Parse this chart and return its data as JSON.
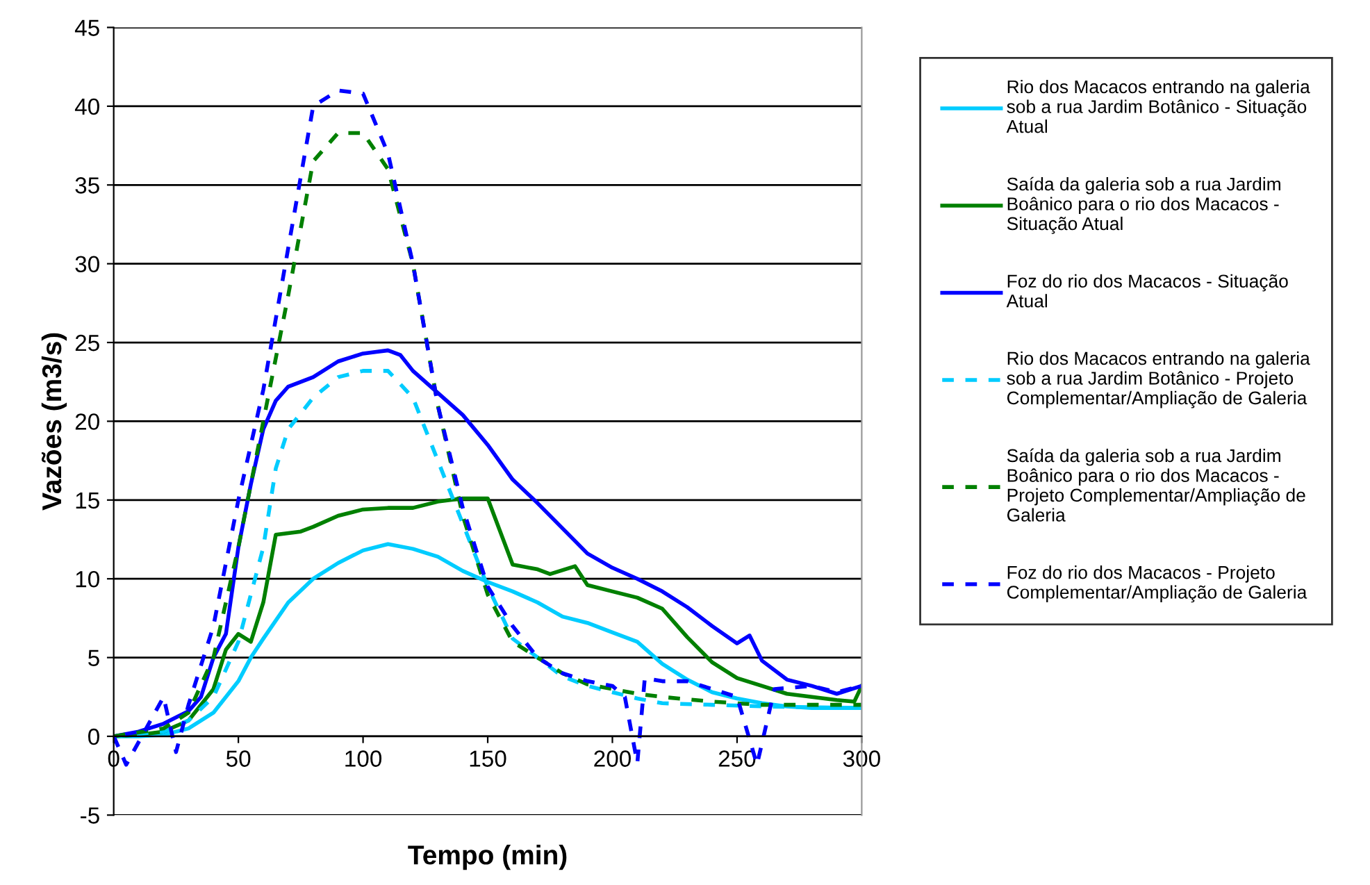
{
  "chart_data": {
    "type": "line",
    "xlabel": "Tempo (min)",
    "ylabel": "Vazões (m3/s)",
    "xlim": [
      0,
      300
    ],
    "ylim": [
      -5,
      45
    ],
    "xticks": [
      0,
      50,
      100,
      150,
      200,
      250,
      300
    ],
    "yticks": [
      -5,
      0,
      5,
      10,
      15,
      20,
      25,
      30,
      35,
      40,
      45
    ],
    "grid": "y",
    "legend": "right",
    "marker": "none",
    "series": [
      {
        "name": "Rio dos Macacos entrando na galeria sob a rua Jardim Botânico - Situação Atual",
        "color": "#00ccff",
        "line_style": "solid",
        "x": [
          0,
          10,
          20,
          30,
          40,
          50,
          55,
          60,
          70,
          80,
          90,
          100,
          110,
          120,
          130,
          140,
          150,
          160,
          170,
          180,
          190,
          200,
          210,
          220,
          230,
          240,
          250,
          260,
          270,
          280,
          290,
          300
        ],
        "values": [
          0,
          0,
          0.1,
          0.5,
          1.5,
          3.5,
          5,
          6.2,
          8.5,
          10,
          11,
          11.8,
          12.2,
          11.9,
          11.4,
          10.5,
          9.8,
          9.2,
          8.5,
          7.6,
          7.2,
          6.6,
          6.0,
          4.6,
          3.6,
          2.8,
          2.4,
          2.1,
          1.9,
          1.8,
          1.8,
          1.8
        ]
      },
      {
        "name": "Saída da galeria sob a rua Jardim Boânico para o rio dos Macacos - Situação Atual",
        "color": "#008000",
        "line_style": "solid",
        "x": [
          0,
          10,
          20,
          30,
          40,
          45,
          50,
          55,
          60,
          65,
          75,
          80,
          90,
          100,
          110,
          120,
          130,
          140,
          150,
          160,
          170,
          175,
          185,
          190,
          200,
          210,
          220,
          230,
          240,
          250,
          260,
          270,
          280,
          290,
          297,
          300
        ],
        "values": [
          0,
          0.1,
          0.3,
          1.0,
          3,
          5.5,
          6.5,
          6.0,
          8.5,
          12.8,
          13.0,
          13.3,
          14.0,
          14.4,
          14.5,
          14.5,
          14.9,
          15.1,
          15.1,
          10.9,
          10.6,
          10.3,
          10.8,
          9.6,
          9.2,
          8.8,
          8.1,
          6.3,
          4.7,
          3.7,
          3.2,
          2.7,
          2.5,
          2.3,
          2.2,
          3.2
        ]
      },
      {
        "name": "Foz do rio dos Macacos - Situação Atual",
        "color": "#0000ff",
        "line_style": "solid",
        "x": [
          0,
          10,
          20,
          30,
          35,
          40,
          45,
          50,
          55,
          60,
          65,
          70,
          80,
          90,
          100,
          110,
          115,
          120,
          130,
          140,
          150,
          160,
          170,
          180,
          190,
          200,
          210,
          220,
          230,
          240,
          250,
          255,
          260,
          270,
          280,
          290,
          300
        ],
        "values": [
          0,
          0.3,
          0.8,
          1.6,
          2.5,
          5,
          6.5,
          12,
          16,
          19.5,
          21.3,
          22.2,
          22.8,
          23.8,
          24.3,
          24.5,
          24.2,
          23.2,
          21.8,
          20.4,
          18.5,
          16.3,
          14.8,
          13.2,
          11.6,
          10.7,
          10.0,
          9.2,
          8.2,
          7.0,
          5.9,
          6.4,
          4.8,
          3.6,
          3.2,
          2.7,
          3.2
        ]
      },
      {
        "name": "Rio dos Macacos entrando na galeria sob a rua Jardim Botânico - Projeto Complementar/Ampliação de Galeria",
        "color": "#00ccff",
        "line_style": "dashed",
        "x": [
          0,
          20,
          30,
          40,
          50,
          60,
          65,
          70,
          80,
          90,
          100,
          110,
          120,
          130,
          140,
          150,
          160,
          170,
          180,
          190,
          200,
          210,
          220,
          240,
          260,
          300
        ],
        "values": [
          0,
          0.3,
          1,
          2.5,
          6,
          12,
          17,
          19.5,
          21.5,
          22.8,
          23.2,
          23.2,
          21.5,
          17.5,
          13.5,
          9.5,
          6.2,
          5.0,
          3.8,
          3.2,
          2.8,
          2.4,
          2.1,
          2.0,
          1.9,
          1.8
        ]
      },
      {
        "name": "Saída da galeria sob a rua Jardim Boânico para o rio dos Macacos - Projeto Complementar/Ampliação de Galeria",
        "color": "#008000",
        "line_style": "dashed",
        "x": [
          0,
          20,
          30,
          40,
          50,
          60,
          70,
          80,
          90,
          100,
          110,
          120,
          130,
          140,
          150,
          160,
          170,
          180,
          190,
          200,
          210,
          220,
          240,
          260,
          280,
          300
        ],
        "values": [
          0,
          0.5,
          1.5,
          5,
          12,
          20,
          28,
          36.5,
          38.3,
          38.3,
          36,
          30,
          21,
          14,
          9,
          6,
          5,
          4,
          3.3,
          3,
          2.7,
          2.5,
          2.2,
          2.0,
          2.0,
          2.0
        ]
      },
      {
        "name": "Foz do rio dos Macacos - Projeto Complementar/Ampliação de Galeria",
        "color": "#0000ff",
        "line_style": "dashed",
        "x": [
          0,
          5,
          20,
          25,
          30,
          40,
          50,
          60,
          70,
          80,
          90,
          100,
          110,
          120,
          130,
          140,
          150,
          160,
          170,
          180,
          190,
          200,
          205,
          210,
          213,
          220,
          230,
          240,
          250,
          258,
          265,
          280,
          290,
          300
        ],
        "values": [
          0,
          -1.8,
          2.5,
          -1,
          2,
          7,
          15,
          22,
          31,
          40,
          41,
          40.8,
          37,
          30,
          21,
          14.5,
          9.5,
          7,
          5,
          4,
          3.5,
          3.2,
          2.5,
          -1.7,
          3.7,
          3.5,
          3.5,
          3.0,
          2.5,
          -1.8,
          3,
          3.2,
          2.8,
          3.2
        ]
      }
    ]
  }
}
